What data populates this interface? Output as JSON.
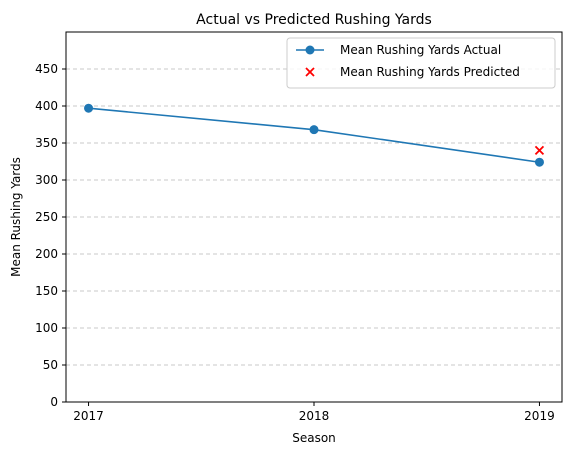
{
  "chart_data": {
    "type": "line",
    "title": "Actual vs Predicted Rushing Yards",
    "xlabel": "Season",
    "ylabel": "Mean Rushing Yards",
    "categories": [
      "2017",
      "2018",
      "2019"
    ],
    "x": [
      2017,
      2018,
      2019
    ],
    "ylim": [
      0,
      500
    ],
    "yticks": [
      0,
      50,
      100,
      150,
      200,
      250,
      300,
      350,
      400,
      450
    ],
    "grid": "horizontal dashed",
    "legend_position": "top-right",
    "series": [
      {
        "name": "Mean Rushing Yards Actual",
        "kind": "line",
        "marker": "circle",
        "color": "#1f77b4",
        "x": [
          2017,
          2018,
          2019
        ],
        "values": [
          397,
          368,
          324
        ]
      },
      {
        "name": "Mean Rushing Yards Predicted",
        "kind": "scatter",
        "marker": "x",
        "color": "#ff0000",
        "x": [
          2019
        ],
        "values": [
          340
        ]
      }
    ]
  }
}
